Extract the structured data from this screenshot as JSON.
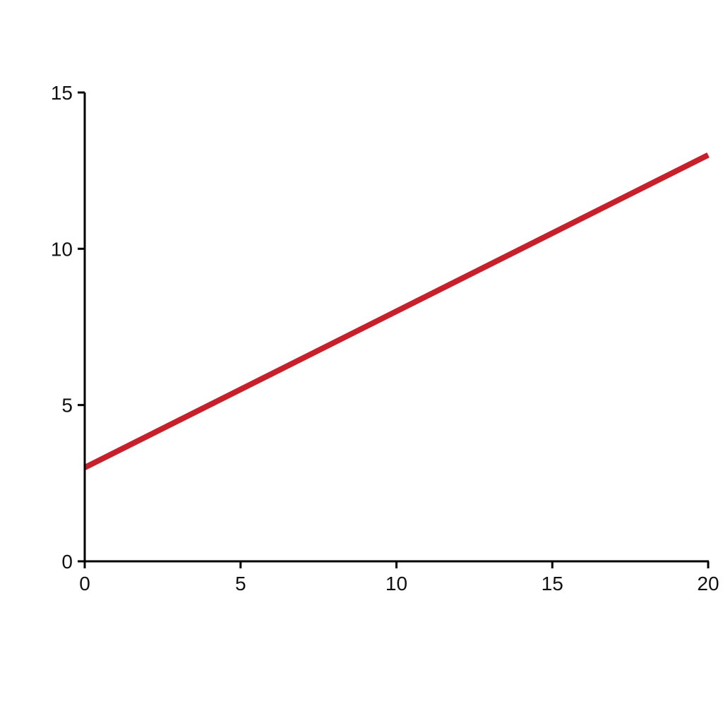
{
  "chart_data": {
    "type": "line",
    "title": "",
    "xlabel": "",
    "ylabel": "",
    "xlim": [
      0,
      20
    ],
    "ylim": [
      0,
      15
    ],
    "x_ticks": [
      "0",
      "5",
      "10",
      "15",
      "20"
    ],
    "y_ticks": [
      "0",
      "5",
      "10",
      "15"
    ],
    "grid": false,
    "legend": "none",
    "series": [
      {
        "x": [
          0,
          20
        ],
        "y": [
          3,
          13
        ],
        "color": "#c8202a"
      }
    ]
  }
}
